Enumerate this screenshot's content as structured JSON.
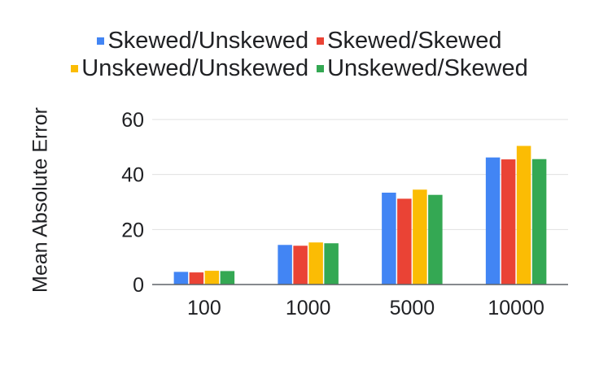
{
  "chart_data": {
    "type": "bar",
    "title": "",
    "xlabel": "",
    "ylabel": "Mean Absolute Error",
    "categories": [
      "100",
      "1000",
      "5000",
      "10000"
    ],
    "ylim": [
      0,
      60
    ],
    "yticks": [
      0,
      20,
      40,
      60
    ],
    "grid": true,
    "legend_position": "top",
    "series": [
      {
        "name": "Skewed/Unskewed",
        "color": "#4285F4",
        "values": [
          4.6,
          14.4,
          33.4,
          46.2
        ]
      },
      {
        "name": "Skewed/Skewed",
        "color": "#EA4335",
        "values": [
          4.4,
          14.1,
          31.2,
          45.5
        ]
      },
      {
        "name": "Unskewed/Unskewed",
        "color": "#FBBC04",
        "values": [
          5.0,
          15.3,
          34.5,
          50.4
        ]
      },
      {
        "name": "Unskewed/Skewed",
        "color": "#34A853",
        "values": [
          4.9,
          15.0,
          32.6,
          45.6
        ]
      }
    ]
  }
}
